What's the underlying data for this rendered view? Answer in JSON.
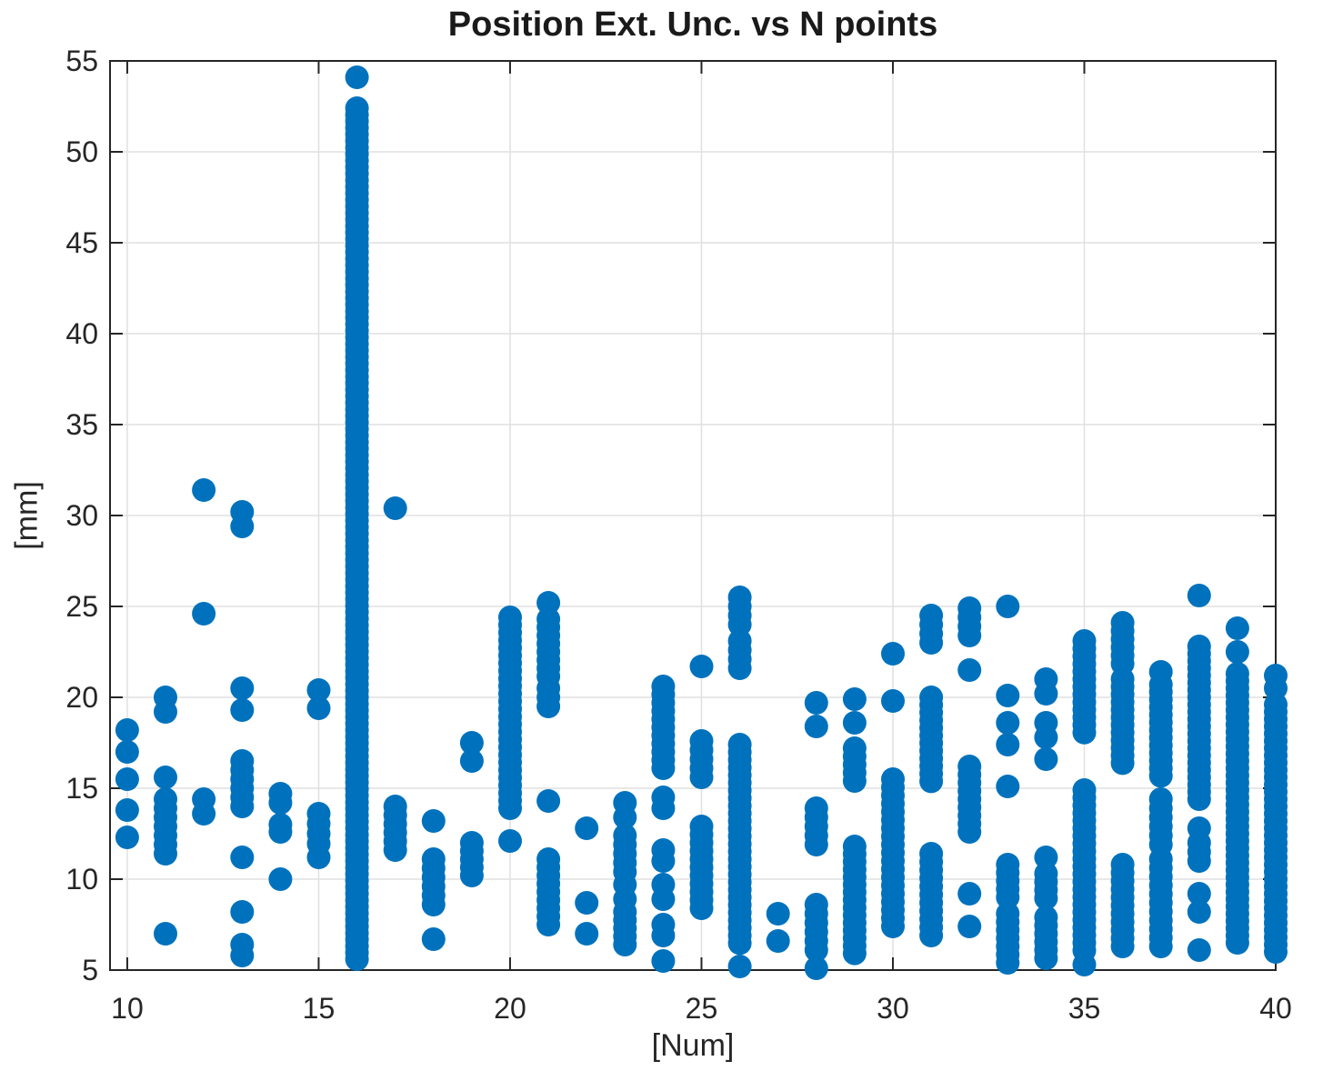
{
  "chart_data": {
    "type": "scatter",
    "title": "Position Ext. Unc. vs N points",
    "xlabel": "[Num]",
    "ylabel": "[mm]",
    "xlim": [
      9.55,
      40.0
    ],
    "ylim": [
      5,
      55
    ],
    "xticks": [
      10,
      15,
      20,
      25,
      30,
      35,
      40
    ],
    "yticks": [
      5,
      10,
      15,
      20,
      25,
      30,
      35,
      40,
      45,
      50,
      55
    ],
    "grid": true,
    "legend_position": "none",
    "marker": {
      "shape": "circle",
      "color": "#0072BD",
      "radius_px": 13
    },
    "grid_color": "#e0e0e0",
    "axis_color": "#262626",
    "tick_label_color": "#262626",
    "columns": [
      {
        "x": 10,
        "pts": [
          18.2,
          17.0,
          15.5,
          13.8,
          12.3
        ],
        "runs": []
      },
      {
        "x": 11,
        "pts": [
          20.0,
          19.2,
          15.6,
          7.0
        ],
        "runs": [
          [
            14.4,
            11.3,
            0.5
          ]
        ]
      },
      {
        "x": 12,
        "pts": [
          31.4,
          24.6,
          14.4,
          13.6
        ],
        "runs": []
      },
      {
        "x": 13,
        "pts": [
          30.2,
          29.4,
          20.5,
          19.3,
          11.2,
          8.2,
          6.4,
          5.8
        ],
        "runs": [
          [
            16.5,
            13.8,
            0.5
          ]
        ]
      },
      {
        "x": 14,
        "pts": [
          14.7,
          14.2,
          13.0,
          12.6,
          10.0
        ],
        "runs": []
      },
      {
        "x": 15,
        "pts": [
          20.4,
          19.4,
          11.2
        ],
        "runs": [
          [
            13.6,
            11.9,
            0.55
          ]
        ]
      },
      {
        "x": 16,
        "pts": [
          54.1
        ],
        "runs": [
          [
            52.4,
            5.4,
            0.36
          ]
        ]
      },
      {
        "x": 17,
        "pts": [
          30.4
        ],
        "runs": [
          [
            14.0,
            11.6,
            0.48
          ]
        ]
      },
      {
        "x": 18,
        "pts": [
          13.2,
          6.7
        ],
        "runs": [
          [
            11.1,
            8.6,
            0.5
          ]
        ]
      },
      {
        "x": 19,
        "pts": [
          17.5,
          16.5
        ],
        "runs": [
          [
            12.0,
            10.2,
            0.45
          ]
        ]
      },
      {
        "x": 20,
        "pts": [
          12.1
        ],
        "runs": [
          [
            24.4,
            13.6,
            0.42
          ]
        ]
      },
      {
        "x": 21,
        "pts": [
          25.2,
          14.3
        ],
        "runs": [
          [
            24.3,
            20.8,
            0.45
          ],
          [
            20.5,
            19.3,
            0.5
          ],
          [
            11.1,
            7.1,
            0.45
          ]
        ]
      },
      {
        "x": 22,
        "pts": [
          12.8,
          8.7,
          7.0
        ],
        "runs": []
      },
      {
        "x": 23,
        "pts": [
          14.2,
          13.4,
          9.7,
          8.9
        ],
        "runs": [
          [
            12.4,
            10.4,
            0.5
          ],
          [
            8.2,
            6.3,
            0.45
          ]
        ]
      },
      {
        "x": 24,
        "pts": [
          14.5,
          13.9,
          11.6,
          11.0,
          9.7,
          8.9,
          7.5,
          6.9,
          5.5
        ],
        "runs": [
          [
            20.6,
            15.8,
            0.45
          ]
        ]
      },
      {
        "x": 25,
        "pts": [
          21.7
        ],
        "runs": [
          [
            17.6,
            15.5,
            0.5
          ],
          [
            12.9,
            8.1,
            0.45
          ]
        ]
      },
      {
        "x": 26,
        "pts": [
          5.2
        ],
        "runs": [
          [
            25.5,
            23.9,
            0.5
          ],
          [
            23.1,
            21.6,
            0.5
          ],
          [
            17.4,
            6.3,
            0.42
          ]
        ]
      },
      {
        "x": 27,
        "pts": [
          8.1,
          6.6
        ],
        "runs": []
      },
      {
        "x": 28,
        "pts": [
          19.7,
          18.4,
          5.1
        ],
        "runs": [
          [
            13.9,
            11.6,
            0.5
          ],
          [
            8.6,
            6.0,
            0.5
          ]
        ]
      },
      {
        "x": 29,
        "pts": [
          19.9,
          18.6
        ],
        "runs": [
          [
            17.2,
            15.4,
            0.45
          ],
          [
            11.8,
            5.9,
            0.42
          ]
        ]
      },
      {
        "x": 30,
        "pts": [
          22.4,
          19.8
        ],
        "runs": [
          [
            15.5,
            7.3,
            0.45
          ]
        ]
      },
      {
        "x": 31,
        "pts": [],
        "runs": [
          [
            24.5,
            22.6,
            0.5
          ],
          [
            20.0,
            15.0,
            0.42
          ],
          [
            11.4,
            6.5,
            0.45
          ]
        ]
      },
      {
        "x": 32,
        "pts": [
          21.5,
          9.2,
          7.4
        ],
        "runs": [
          [
            24.9,
            23.0,
            0.5
          ],
          [
            16.2,
            12.2,
            0.45
          ]
        ]
      },
      {
        "x": 33,
        "pts": [
          25.0,
          20.1,
          18.6,
          17.4,
          15.1
        ],
        "runs": [
          [
            10.8,
            9.0,
            0.45
          ],
          [
            8.1,
            5.2,
            0.45
          ]
        ]
      },
      {
        "x": 34,
        "pts": [
          21.0,
          20.2,
          18.6,
          17.8,
          16.6,
          11.2
        ],
        "runs": [
          [
            10.3,
            8.6,
            0.45
          ],
          [
            7.9,
            5.6,
            0.45
          ]
        ]
      },
      {
        "x": 35,
        "pts": [
          5.3
        ],
        "runs": [
          [
            23.1,
            17.7,
            0.42
          ],
          [
            14.9,
            6.0,
            0.42
          ]
        ]
      },
      {
        "x": 36,
        "pts": [],
        "runs": [
          [
            24.1,
            21.6,
            0.45
          ],
          [
            21.0,
            16.1,
            0.42
          ],
          [
            10.8,
            6.1,
            0.45
          ]
        ]
      },
      {
        "x": 37,
        "pts": [
          21.4,
          20.7
        ],
        "runs": [
          [
            20.3,
            15.5,
            0.42
          ],
          [
            14.4,
            11.9,
            0.5
          ],
          [
            11.1,
            6.0,
            0.48
          ]
        ]
      },
      {
        "x": 38,
        "pts": [
          25.6,
          12.8,
          9.2,
          8.2,
          6.1
        ],
        "runs": [
          [
            22.8,
            14.1,
            0.4
          ],
          [
            12.0,
            10.6,
            0.5
          ]
        ]
      },
      {
        "x": 39,
        "pts": [
          23.8,
          22.5
        ],
        "runs": [
          [
            21.3,
            6.3,
            0.4
          ]
        ]
      },
      {
        "x": 40,
        "pts": [
          21.2,
          20.5
        ],
        "runs": [
          [
            19.6,
            6.0,
            0.4
          ]
        ]
      }
    ]
  }
}
